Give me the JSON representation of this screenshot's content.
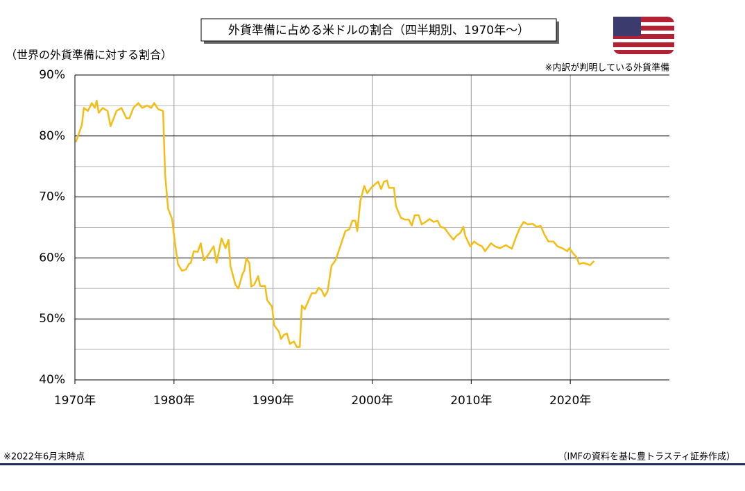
{
  "chart_data": {
    "type": "line",
    "title": "外貨準備に占める米ドルの割合（四半期別、1970年～）",
    "y_label": "（世界の外貨準備に対する割合）",
    "note": "※内訳が判明している外貨準備",
    "footnote": "※2022年6月末時点",
    "source": "（IMFの資料を基に豊トラスティ証券作成）",
    "xlim": [
      1970,
      2030
    ],
    "ylim": [
      40,
      90
    ],
    "xticks": [
      {
        "value": 1970,
        "label": "1970年"
      },
      {
        "value": 1980,
        "label": "1980年"
      },
      {
        "value": 1990,
        "label": "1990年"
      },
      {
        "value": 2000,
        "label": "2000年"
      },
      {
        "value": 2010,
        "label": "2010年"
      },
      {
        "value": 2020,
        "label": "2020年"
      }
    ],
    "yticks": [
      {
        "value": 40,
        "label": "40%"
      },
      {
        "value": 50,
        "label": "50%"
      },
      {
        "value": 60,
        "label": "60%"
      },
      {
        "value": 70,
        "label": "70%"
      },
      {
        "value": 80,
        "label": "80%"
      },
      {
        "value": 90,
        "label": "90%"
      }
    ],
    "y_minor_ticks": [
      45,
      55,
      65,
      75,
      85
    ],
    "grid": true,
    "x": [
      1970.1,
      1970.7,
      1970.9,
      1971.3,
      1971.7,
      1972.0,
      1972.2,
      1972.4,
      1972.8,
      1973.3,
      1973.6,
      1974.2,
      1974.7,
      1975.2,
      1975.5,
      1975.9,
      1976.4,
      1976.8,
      1977.3,
      1977.7,
      1978.0,
      1978.4,
      1978.9,
      1979.1,
      1979.4,
      1979.8,
      1980.1,
      1980.4,
      1980.8,
      1981.2,
      1981.5,
      1981.7,
      1982.0,
      1982.4,
      1982.7,
      1983.0,
      1983.4,
      1984.0,
      1984.3,
      1984.8,
      1985.2,
      1985.5,
      1985.7,
      1986.2,
      1986.5,
      1986.9,
      1987.1,
      1987.3,
      1987.6,
      1987.8,
      1988.1,
      1988.5,
      1988.7,
      1989.2,
      1989.4,
      1989.9,
      1990.1,
      1990.6,
      1990.8,
      1991.1,
      1991.4,
      1991.7,
      1992.1,
      1992.4,
      1992.7,
      1992.9,
      1993.2,
      1993.6,
      1993.9,
      1994.3,
      1994.6,
      1994.9,
      1995.2,
      1995.5,
      1995.9,
      1996.3,
      1996.7,
      1997.0,
      1997.3,
      1997.7,
      1998.0,
      1998.3,
      1998.5,
      1998.8,
      1999.2,
      1999.5,
      1999.9,
      2000.3,
      2000.6,
      2000.9,
      2001.2,
      2001.5,
      2001.7,
      2002.2,
      2002.4,
      2002.9,
      2003.3,
      2003.7,
      2004.0,
      2004.3,
      2004.7,
      2005.0,
      2005.4,
      2005.8,
      2006.2,
      2006.6,
      2006.9,
      2007.3,
      2007.8,
      2008.2,
      2008.5,
      2008.9,
      2009.2,
      2009.4,
      2009.9,
      2010.3,
      2010.7,
      2011.1,
      2011.4,
      2012.0,
      2012.4,
      2012.9,
      2013.5,
      2014.1,
      2014.5,
      2014.9,
      2015.3,
      2015.7,
      2016.2,
      2016.6,
      2017.0,
      2017.4,
      2017.8,
      2018.3,
      2018.7,
      2019.2,
      2019.7,
      2019.9,
      2020.3,
      2020.6,
      2020.9,
      2021.3,
      2021.7,
      2022.0,
      2022.4
    ],
    "series": [
      {
        "color": "#f5bd14",
        "values": [
          79.0,
          81.8,
          84.6,
          84.1,
          85.4,
          84.6,
          85.8,
          83.8,
          84.6,
          84.1,
          81.6,
          84.1,
          84.6,
          82.9,
          82.9,
          84.6,
          85.4,
          84.6,
          85.0,
          84.6,
          85.4,
          84.4,
          84.1,
          73.8,
          68.1,
          66.4,
          62.4,
          59.0,
          57.9,
          58.1,
          59.0,
          59.2,
          61.1,
          61.0,
          62.4,
          59.6,
          60.4,
          61.9,
          59.2,
          63.2,
          61.6,
          63.0,
          58.7,
          55.6,
          55.0,
          57.3,
          57.9,
          59.9,
          59.2,
          55.3,
          55.6,
          57.0,
          55.4,
          55.4,
          53.1,
          52.0,
          49.0,
          47.9,
          46.7,
          47.4,
          47.6,
          45.9,
          46.3,
          45.4,
          45.4,
          52.2,
          51.6,
          53.1,
          54.2,
          54.2,
          55.1,
          54.7,
          53.7,
          54.5,
          58.7,
          59.6,
          61.5,
          63.0,
          64.4,
          64.7,
          66.1,
          66.1,
          64.4,
          69.3,
          71.8,
          70.6,
          71.5,
          72.1,
          72.5,
          71.3,
          72.5,
          72.7,
          71.5,
          71.5,
          68.5,
          66.6,
          66.3,
          66.3,
          65.3,
          67.0,
          67.0,
          65.5,
          65.9,
          66.4,
          65.9,
          66.1,
          65.1,
          64.9,
          63.8,
          63.0,
          63.6,
          64.1,
          65.1,
          63.6,
          61.9,
          62.7,
          62.2,
          61.9,
          61.1,
          62.4,
          61.9,
          61.6,
          62.1,
          61.5,
          63.3,
          64.9,
          65.9,
          65.5,
          65.6,
          65.1,
          65.3,
          63.8,
          62.7,
          62.7,
          61.9,
          61.6,
          61.1,
          61.6,
          60.7,
          60.2,
          59.0,
          59.2,
          59.0,
          58.8,
          59.5
        ]
      }
    ]
  }
}
